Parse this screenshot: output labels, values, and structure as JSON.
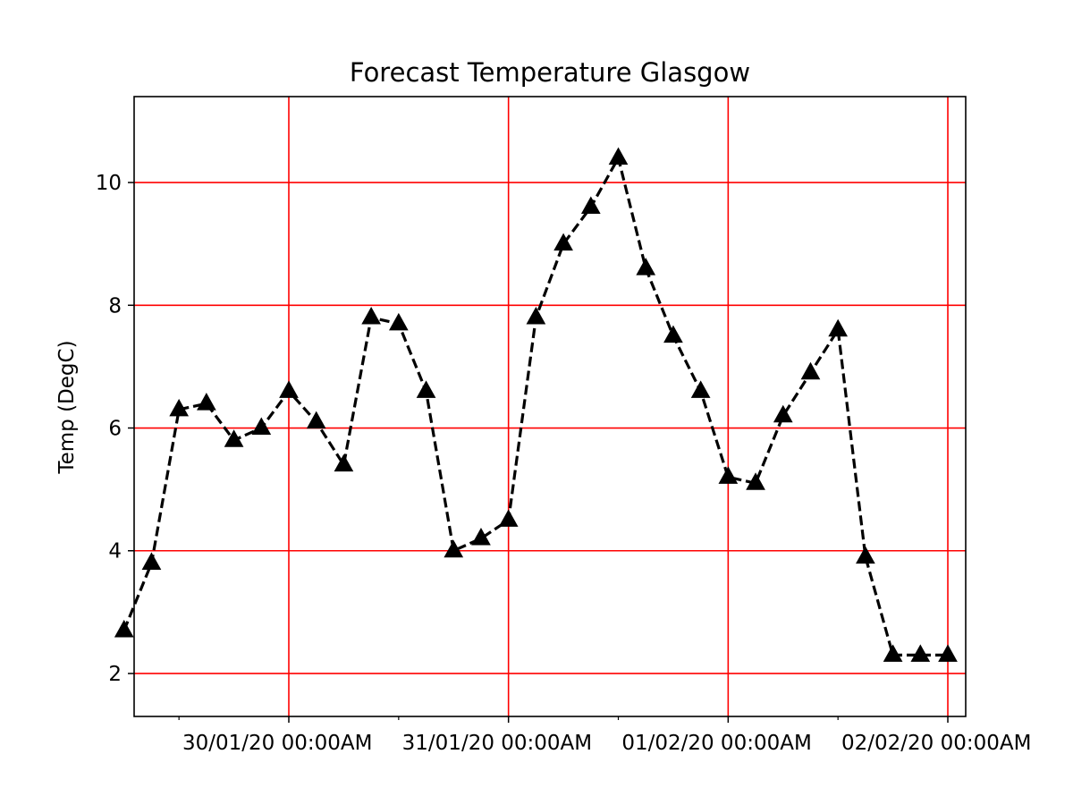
{
  "chart_data": {
    "type": "line",
    "title": "Forecast Temperature Glasgow",
    "xlabel": "",
    "ylabel": "Temp (DegC)",
    "x_tick_labels": [
      "30/01/20 00:00AM",
      "31/01/20 00:00AM",
      "01/02/20 00:00AM",
      "02/02/20 00:00AM"
    ],
    "x_tick_labels_printed": [
      "30/01/20 00:00AM",
      "31/01/20 00:00AM",
      "01/02/20 00:00AM",
      "02/02/20 00:00AM"
    ],
    "y_ticks": [
      2,
      4,
      6,
      8,
      10
    ],
    "ylim": [
      1.3,
      11.4
    ],
    "grid": true,
    "colors": {
      "line": "#000000",
      "marker": "#000000",
      "grid": "#ff0000"
    },
    "series": [
      {
        "line_style": "dashed",
        "marker": "triangle",
        "x": [
          "29/01/20 06:00AM",
          "29/01/20 09:00AM",
          "29/01/20 12:00PM",
          "29/01/20 03:00PM",
          "29/01/20 06:00PM",
          "29/01/20 09:00PM",
          "30/01/20 00:00AM",
          "30/01/20 03:00AM",
          "30/01/20 06:00AM",
          "30/01/20 09:00AM",
          "30/01/20 12:00PM",
          "30/01/20 03:00PM",
          "30/01/20 06:00PM",
          "30/01/20 09:00PM",
          "31/01/20 00:00AM",
          "31/01/20 03:00AM",
          "31/01/20 06:00AM",
          "31/01/20 09:00AM",
          "31/01/20 12:00PM",
          "31/01/20 03:00PM",
          "31/01/20 06:00PM",
          "31/01/20 09:00PM",
          "01/02/20 00:00AM",
          "01/02/20 03:00AM",
          "01/02/20 06:00AM",
          "01/02/20 09:00AM",
          "01/02/20 12:00PM",
          "01/02/20 03:00PM",
          "01/02/20 06:00PM",
          "01/02/20 09:00PM",
          "02/02/20 00:00AM"
        ],
        "values": [
          2.7,
          3.8,
          6.3,
          6.4,
          5.8,
          6.0,
          6.6,
          6.1,
          5.4,
          7.8,
          7.7,
          6.6,
          4.0,
          4.2,
          4.5,
          7.8,
          9.0,
          9.6,
          10.4,
          8.6,
          7.5,
          6.6,
          5.2,
          5.1,
          6.2,
          6.9,
          7.6,
          3.9,
          2.3,
          2.3,
          2.3
        ]
      }
    ]
  }
}
